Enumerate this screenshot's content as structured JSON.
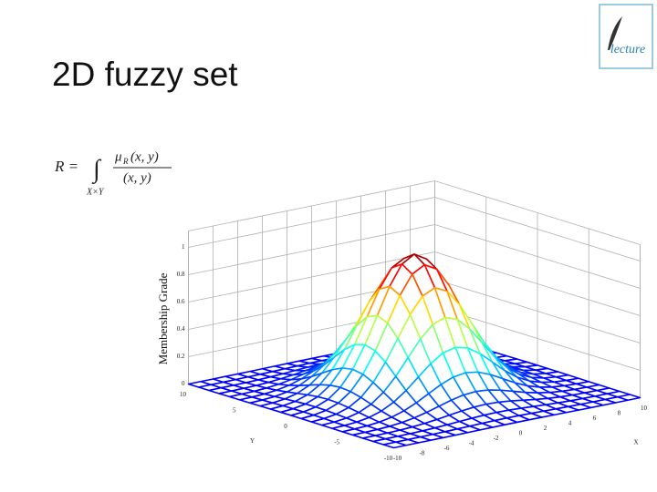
{
  "header": {
    "title": "2D fuzzy set",
    "logo": "lecture"
  },
  "formula": {
    "lhs": "R =",
    "domain": "X×Y",
    "numerator_symbol": "μ",
    "numerator_subscript": "R",
    "numerator_args": "(x, y)",
    "denominator": "(x, y)"
  },
  "chart": {
    "type": "mesh3d",
    "zlabel": "Membership Grade",
    "xlabel": "X",
    "ylabel": "Y",
    "xlim": [
      -10,
      10
    ],
    "ylim": [
      -10,
      10
    ],
    "zlim": [
      0,
      1
    ],
    "xticks": [
      -10,
      -8,
      -6,
      -4,
      -2,
      0,
      2,
      4,
      6,
      8,
      10
    ],
    "yticks": [
      10,
      5,
      0,
      -5,
      -10
    ],
    "zticks": [
      0,
      0.2,
      0.4,
      0.6,
      0.8,
      1
    ]
  }
}
